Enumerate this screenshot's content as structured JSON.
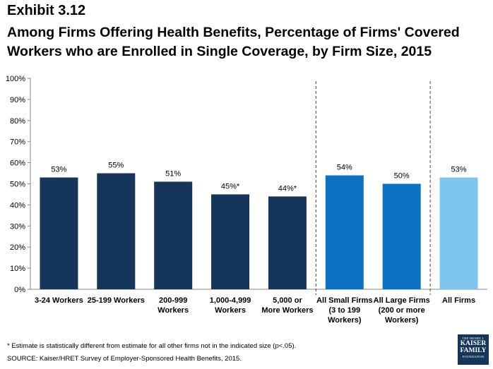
{
  "exhibit": "Exhibit 3.12",
  "title": "Among Firms Offering Health Benefits, Percentage of Firms' Covered Workers who are Enrolled in Single Coverage, by Firm Size, 2015",
  "footnote": "* Estimate is statistically different from estimate for all other firms not in the indicated size (p<.05).",
  "source": "SOURCE: Kaiser/HRET Survey of Employer-Sponsored Health Benefits, 2015.",
  "logo": {
    "line1": "THE HENRY J.",
    "line2": "KAISER",
    "line3": "FAMILY",
    "line4": "FOUNDATION"
  },
  "colors": {
    "dark_navy": "#15355a",
    "medium_blue": "#0b72c4",
    "light_blue": "#7fc6ee"
  },
  "chart_data": {
    "type": "bar",
    "ylim": [
      0,
      100
    ],
    "yticks": [
      "0%",
      "10%",
      "20%",
      "30%",
      "40%",
      "50%",
      "60%",
      "70%",
      "80%",
      "90%",
      "100%"
    ],
    "grid": false,
    "separators_after_category_index": [
      4,
      6
    ],
    "categories": [
      {
        "label_lines": [
          "3-24 Workers"
        ],
        "value": 53,
        "label": "53%",
        "color": "#15355a"
      },
      {
        "label_lines": [
          "25-199 Workers"
        ],
        "value": 55,
        "label": "55%",
        "color": "#15355a"
      },
      {
        "label_lines": [
          "200-999",
          "Workers"
        ],
        "value": 51,
        "label": "51%",
        "color": "#15355a"
      },
      {
        "label_lines": [
          "1,000-4,999",
          "Workers"
        ],
        "value": 45,
        "label": "45%*",
        "color": "#15355a"
      },
      {
        "label_lines": [
          "5,000 or",
          "More Workers"
        ],
        "value": 44,
        "label": "44%*",
        "color": "#15355a"
      },
      {
        "label_lines": [
          "All Small Firms",
          "(3 to 199",
          "Workers)"
        ],
        "value": 54,
        "label": "54%",
        "color": "#0b72c4"
      },
      {
        "label_lines": [
          "All Large Firms",
          "(200 or more",
          "Workers)"
        ],
        "value": 50,
        "label": "50%",
        "color": "#0b72c4"
      },
      {
        "label_lines": [
          "All Firms"
        ],
        "value": 53,
        "label": "53%",
        "color": "#7fc6ee"
      }
    ]
  }
}
